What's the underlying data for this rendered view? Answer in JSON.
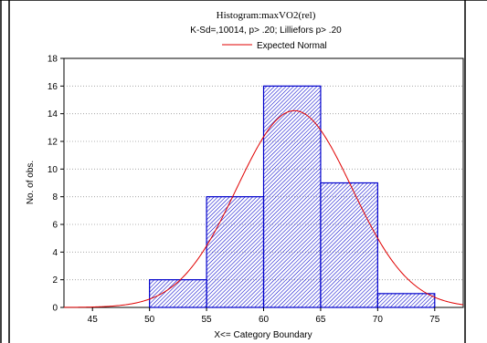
{
  "chart_data": {
    "type": "bar",
    "title": "Histogram:maxVO2(rel)",
    "subtitle": "K-Sd=,10014, p> .20; Lilliefors p> .20",
    "legend": [
      "Expected Normal"
    ],
    "legend_placement": "top",
    "xlabel": "X<= Category Boundary",
    "ylabel": "No. of obs.",
    "x_ticks": [
      45,
      50,
      55,
      60,
      65,
      70,
      75
    ],
    "y_ticks": [
      0,
      2,
      4,
      6,
      8,
      10,
      12,
      14,
      16,
      18
    ],
    "xlim": [
      42.5,
      77.5
    ],
    "ylim": [
      0,
      18
    ],
    "grid": "horizontal dotted",
    "bins": [
      {
        "from": 50,
        "to": 55,
        "count": 2
      },
      {
        "from": 55,
        "to": 60,
        "count": 8
      },
      {
        "from": 60,
        "to": 65,
        "count": 16
      },
      {
        "from": 65,
        "to": 70,
        "count": 9
      },
      {
        "from": 70,
        "to": 75,
        "count": 1
      }
    ],
    "normal_curve": {
      "name": "Expected Normal",
      "mean": 62.7,
      "sd": 5.05,
      "n": 36,
      "bin_width": 5
    },
    "colors": {
      "bar_edge": "#0000cc",
      "bar_hatch": "#0000cc",
      "curve": "#e00000"
    }
  }
}
